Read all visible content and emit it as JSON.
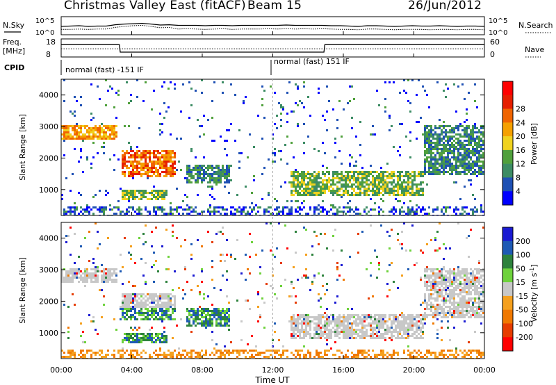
{
  "header": {
    "station": "Christmas Valley East (fitACF)",
    "beam": "Beam 15",
    "date": "26/Jun/2012"
  },
  "panels": {
    "noise_left_label": "N.Sky",
    "noise_right_label": "N.Search",
    "freq_left_label": "Freq.",
    "freq_units": "[MHz]",
    "freq_right_label": "Nave",
    "cpid_label": "CPID",
    "cpid_1": "normal (fast) -151 IF",
    "cpid_2": "normal (fast) 151 IF"
  },
  "colors": {
    "power": [
      "#0000ff",
      "#1e50b4",
      "#3c8c64",
      "#50a03c",
      "#f0d21e",
      "#f5a000",
      "#f06400",
      "#e61e00",
      "#ff0000"
    ],
    "velocity": [
      "#1a1ad2",
      "#1e5ab4",
      "#2d823c",
      "#6ed23c",
      "#c8c8c8",
      "#f5a01e",
      "#f07800",
      "#e63c00",
      "#ff0000"
    ]
  },
  "chart_data": [
    {
      "type": "line",
      "name": "noise",
      "yticks": [
        "10^5",
        "10^0"
      ],
      "right_yticks": [
        "10^5",
        "10^0"
      ],
      "series": [
        {
          "values": [
            2.3,
            2.4,
            2.5,
            2.3,
            2.4,
            2.4,
            2.8,
            3.0,
            3.1,
            3.2,
            3.0,
            2.7,
            2.8,
            2.6,
            2.6,
            2.6,
            2.5,
            2.6,
            2.6,
            2.5,
            2.6,
            2.6,
            2.6,
            2.6,
            2.6,
            2.7,
            2.6,
            2.6,
            2.6,
            2.6,
            2.5,
            2.5,
            2.4,
            2.3,
            2.5,
            2.5,
            2.4,
            2.3,
            2.4,
            2.5,
            2.4,
            2.4,
            2.5,
            2.4,
            2.3,
            2.4,
            2.4,
            2.3
          ]
        },
        {
          "values": [
            1.4,
            1.4,
            1.5,
            1.4,
            1.5,
            1.5,
            2.0,
            2.3,
            2.5,
            2.6,
            2.3,
            1.9,
            2.0,
            1.5,
            1.6,
            1.5,
            1.4,
            1.5,
            1.6,
            1.4,
            1.5,
            1.5,
            1.5,
            1.6,
            1.5,
            1.6,
            1.5,
            1.6,
            1.5,
            1.6,
            1.5,
            1.4,
            1.4,
            1.3,
            1.5,
            1.5,
            1.4,
            1.3,
            1.4,
            1.4,
            1.4,
            1.3,
            1.4,
            1.4,
            1.3,
            1.4,
            1.4,
            1.3
          ]
        }
      ]
    },
    {
      "type": "line",
      "name": "frequency",
      "yticks": [
        "18",
        "8"
      ],
      "right_yticks": [
        "60",
        "0"
      ],
      "series": [
        {
          "x": [
            0,
            0.1,
            3.3,
            3.35,
            14.9,
            14.95,
            24.0
          ],
          "values": [
            15,
            15,
            15,
            10.5,
            10.5,
            15,
            15
          ]
        },
        {
          "x": [
            0,
            24
          ],
          "values": [
            12.5,
            12.5
          ]
        }
      ]
    },
    {
      "type": "heatmap",
      "name": "power",
      "ylabel": "Slant Range [km]",
      "colorbar_label": "Power [dB]",
      "colorbar_ticks": [
        "4",
        "8",
        "12",
        "16",
        "20",
        "24",
        "28"
      ],
      "ylim": [
        180,
        4500
      ],
      "yticks": [
        "1000",
        "2000",
        "3000",
        "4000"
      ],
      "xlim": [
        0,
        24
      ],
      "features": [
        {
          "t0": 0.0,
          "t1": 3.1,
          "r0": 2600,
          "r1": 3100,
          "level": 5
        },
        {
          "t0": 3.4,
          "t1": 6.4,
          "r0": 1400,
          "r1": 2300,
          "level": 6
        },
        {
          "t0": 3.4,
          "t1": 6.0,
          "r0": 700,
          "r1": 1000,
          "level": 3
        },
        {
          "t0": 7.0,
          "t1": 9.5,
          "r0": 1200,
          "r1": 1800,
          "level": 2
        },
        {
          "t0": 13.0,
          "t1": 20.5,
          "r0": 800,
          "r1": 1600,
          "level": 3
        },
        {
          "t0": 20.5,
          "t1": 24.0,
          "r0": 1500,
          "r1": 3100,
          "level": 2
        }
      ]
    },
    {
      "type": "heatmap",
      "name": "velocity",
      "ylabel": "Slant Range [km]",
      "colorbar_label": "Velocity [m s^-1]",
      "colorbar_ticks": [
        "200",
        "100",
        "50",
        "15",
        "-15",
        "-50",
        "-100",
        "-200"
      ],
      "ylim": [
        180,
        4500
      ],
      "yticks": [
        "1000",
        "2000",
        "3000",
        "4000"
      ],
      "xlim": [
        0,
        24
      ],
      "xlabel": "Time UT",
      "xticks": [
        "00:00",
        "04:00",
        "08:00",
        "12:00",
        "16:00",
        "20:00",
        "00:00"
      ]
    }
  ]
}
